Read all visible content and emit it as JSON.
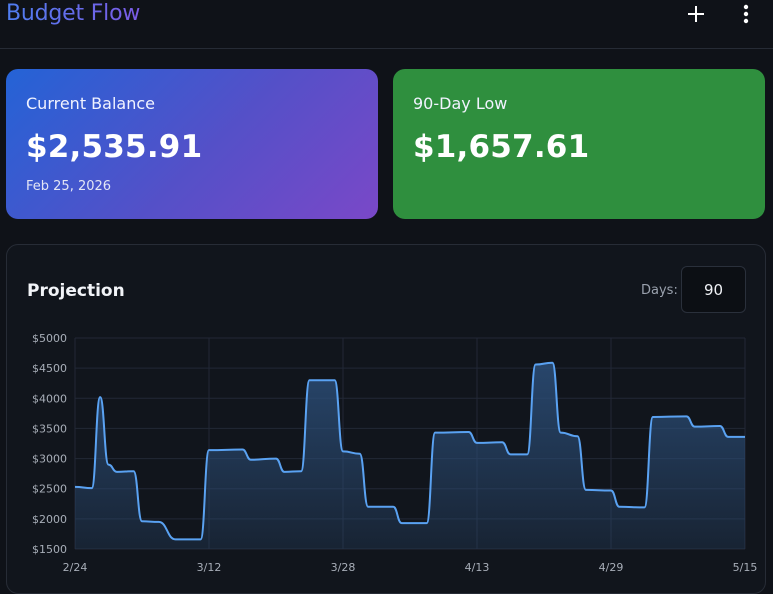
{
  "header": {
    "title": "Budget Flow",
    "add_icon": "plus-icon",
    "more_icon": "more-vertical-icon"
  },
  "cards": {
    "balance": {
      "label": "Current Balance",
      "value": "$2,535.91",
      "date": "Feb 25, 2026"
    },
    "low": {
      "label": "90-Day Low",
      "value": "$1,657.61"
    }
  },
  "projection": {
    "title": "Projection",
    "days_label": "Days:",
    "days_value": "90"
  },
  "colors": {
    "line": "#5aa2f2",
    "fill_top": "#2c4f7a",
    "grid": "#222836",
    "tick": "#a8aeb8"
  },
  "chart_data": {
    "type": "area",
    "title": "",
    "xlabel": "",
    "ylabel": "",
    "ylim": [
      1500,
      5000
    ],
    "y_ticks": [
      "$5000",
      "$4500",
      "$4000",
      "$3500",
      "$3000",
      "$2500",
      "$2000",
      "$1500"
    ],
    "x_ticks": [
      "2/24",
      "3/12",
      "3/28",
      "4/13",
      "4/29",
      "5/15"
    ],
    "series": [
      {
        "points": [
          [
            0,
            2530
          ],
          [
            2,
            2510
          ],
          [
            3,
            4020
          ],
          [
            4,
            2900
          ],
          [
            5,
            2780
          ],
          [
            7,
            2790
          ],
          [
            8,
            1960
          ],
          [
            10,
            1950
          ],
          [
            12,
            1660
          ],
          [
            15,
            1660
          ],
          [
            16,
            3140
          ],
          [
            20,
            3150
          ],
          [
            21,
            2980
          ],
          [
            24,
            3000
          ],
          [
            25,
            2780
          ],
          [
            27,
            2790
          ],
          [
            28,
            4300
          ],
          [
            31,
            4300
          ],
          [
            32,
            3120
          ],
          [
            34,
            3080
          ],
          [
            35,
            2200
          ],
          [
            38,
            2200
          ],
          [
            39,
            1930
          ],
          [
            42,
            1930
          ],
          [
            43,
            3430
          ],
          [
            47,
            3440
          ],
          [
            48,
            3260
          ],
          [
            51,
            3270
          ],
          [
            52,
            3070
          ],
          [
            54,
            3070
          ],
          [
            55,
            4560
          ],
          [
            57,
            4590
          ],
          [
            58,
            3430
          ],
          [
            60,
            3370
          ],
          [
            61,
            2480
          ],
          [
            64,
            2470
          ],
          [
            65,
            2200
          ],
          [
            68,
            2190
          ],
          [
            69,
            3690
          ],
          [
            73,
            3700
          ],
          [
            74,
            3530
          ],
          [
            77,
            3540
          ],
          [
            78,
            3360
          ],
          [
            80,
            3360
          ]
        ]
      }
    ]
  }
}
